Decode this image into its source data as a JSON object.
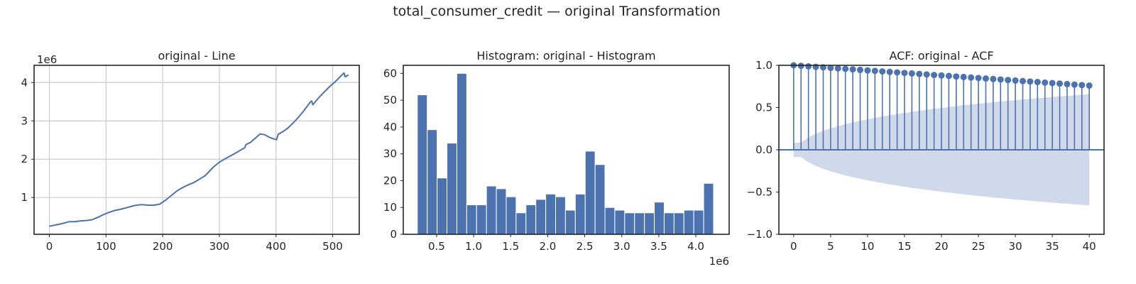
{
  "figure": {
    "suptitle": "total_consumer_credit — original Transformation"
  },
  "chart_data": [
    {
      "type": "line",
      "title": "original - Line",
      "xlabel": "",
      "ylabel": "",
      "y_multiplier_label": "1e6",
      "xlim": [
        -27,
        547
      ],
      "ylim": [
        0.04,
        4.45
      ],
      "xticks": [
        0,
        100,
        200,
        300,
        400,
        500
      ],
      "xtick_labels": [
        "0",
        "100",
        "200",
        "300",
        "400",
        "500"
      ],
      "yticks": [
        1,
        2,
        3,
        4
      ],
      "ytick_labels": [
        "1",
        "2",
        "3",
        "4"
      ],
      "grid": true,
      "color": "#4c72b0",
      "x": [
        0,
        10,
        20,
        30,
        35,
        45,
        55,
        65,
        75,
        85,
        95,
        105,
        115,
        125,
        135,
        145,
        150,
        155,
        160,
        165,
        175,
        185,
        195,
        205,
        215,
        225,
        235,
        245,
        255,
        265,
        275,
        282,
        290,
        300,
        310,
        320,
        330,
        340,
        345,
        347,
        355,
        365,
        372,
        380,
        390,
        398,
        401,
        404,
        412,
        420,
        430,
        440,
        450,
        460,
        463,
        465,
        475,
        485,
        495,
        505,
        515,
        520,
        522,
        528
      ],
      "y": [
        0.25,
        0.28,
        0.31,
        0.35,
        0.37,
        0.37,
        0.39,
        0.4,
        0.42,
        0.48,
        0.55,
        0.61,
        0.66,
        0.69,
        0.73,
        0.77,
        0.79,
        0.8,
        0.81,
        0.81,
        0.8,
        0.8,
        0.83,
        0.93,
        1.05,
        1.17,
        1.26,
        1.33,
        1.39,
        1.48,
        1.57,
        1.68,
        1.8,
        1.92,
        2.01,
        2.09,
        2.17,
        2.26,
        2.3,
        2.38,
        2.44,
        2.57,
        2.66,
        2.64,
        2.56,
        2.52,
        2.51,
        2.65,
        2.72,
        2.8,
        2.94,
        3.1,
        3.28,
        3.48,
        3.52,
        3.42,
        3.6,
        3.75,
        3.9,
        4.03,
        4.18,
        4.25,
        4.15,
        4.2
      ]
    },
    {
      "type": "bar",
      "title": "Histogram: original - Histogram",
      "xlabel": "",
      "ylabel": "",
      "x_multiplier_label": "1e6",
      "xlim": [
        0.05,
        4.45
      ],
      "ylim": [
        0,
        63
      ],
      "xticks": [
        0.5,
        1.0,
        1.5,
        2.0,
        2.5,
        3.0,
        3.5,
        4.0
      ],
      "xtick_labels": [
        "0.5",
        "1.0",
        "1.5",
        "2.0",
        "2.5",
        "3.0",
        "3.5",
        "4.0"
      ],
      "yticks": [
        0,
        10,
        20,
        30,
        40,
        50,
        60
      ],
      "ytick_labels": [
        "0",
        "10",
        "20",
        "30",
        "40",
        "50",
        "60"
      ],
      "grid": false,
      "color": "#4c72b0",
      "bin_start": 0.24,
      "bin_width": 0.1333,
      "counts": [
        52,
        39,
        21,
        34,
        60,
        11,
        11,
        18,
        17,
        14,
        8,
        11,
        13,
        15,
        14,
        9,
        15,
        31,
        26,
        10,
        9,
        8,
        8,
        8,
        12,
        8,
        8,
        9,
        9,
        19
      ]
    },
    {
      "type": "scatter",
      "title": "ACF: original - ACF",
      "xlabel": "",
      "ylabel": "",
      "xlim": [
        -2,
        42
      ],
      "ylim": [
        -1.0,
        1.0
      ],
      "xticks": [
        0,
        5,
        10,
        15,
        20,
        25,
        30,
        35,
        40
      ],
      "xtick_labels": [
        "0",
        "5",
        "10",
        "15",
        "20",
        "25",
        "30",
        "35",
        "40"
      ],
      "yticks": [
        -1.0,
        -0.5,
        0.0,
        0.5,
        1.0
      ],
      "ytick_labels": [
        "−1.0",
        "−0.5",
        "0.0",
        "0.5",
        "1.0"
      ],
      "grid": false,
      "color": "#4c72b0",
      "band_color": "#d0d9ea",
      "lags": [
        0,
        1,
        2,
        3,
        4,
        5,
        6,
        7,
        8,
        9,
        10,
        11,
        12,
        13,
        14,
        15,
        16,
        17,
        18,
        19,
        20,
        21,
        22,
        23,
        24,
        25,
        26,
        27,
        28,
        29,
        30,
        31,
        32,
        33,
        34,
        35,
        36,
        37,
        38,
        39,
        40
      ],
      "acf": [
        1.0,
        0.994,
        0.988,
        0.982,
        0.976,
        0.97,
        0.964,
        0.958,
        0.952,
        0.946,
        0.94,
        0.934,
        0.928,
        0.922,
        0.916,
        0.91,
        0.904,
        0.898,
        0.892,
        0.886,
        0.88,
        0.874,
        0.868,
        0.862,
        0.856,
        0.85,
        0.844,
        0.838,
        0.832,
        0.826,
        0.82,
        0.814,
        0.808,
        0.802,
        0.796,
        0.79,
        0.784,
        0.778,
        0.772,
        0.766,
        0.76
      ],
      "conf_upper": [
        0.085,
        0.085,
        0.147,
        0.19,
        0.225,
        0.254,
        0.28,
        0.303,
        0.324,
        0.343,
        0.361,
        0.378,
        0.394,
        0.409,
        0.423,
        0.437,
        0.45,
        0.462,
        0.474,
        0.485,
        0.496,
        0.507,
        0.517,
        0.527,
        0.537,
        0.546,
        0.555,
        0.564,
        0.572,
        0.58,
        0.588,
        0.596,
        0.603,
        0.611,
        0.618,
        0.625,
        0.632,
        0.638,
        0.645,
        0.651,
        0.657
      ]
    }
  ]
}
